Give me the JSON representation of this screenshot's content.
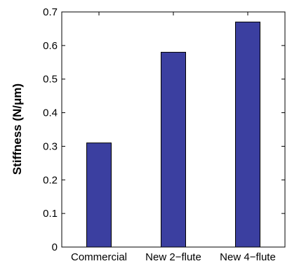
{
  "chart_data": {
    "type": "bar",
    "categories": [
      "Commercial",
      "New 2−flute",
      "New 4−flute"
    ],
    "values": [
      0.31,
      0.58,
      0.67
    ],
    "title": "",
    "xlabel": "",
    "ylabel": "Stiffness (N/μm)",
    "ylim": [
      0,
      0.7
    ],
    "yticks": [
      "0",
      "0.1",
      "0.2",
      "0.3",
      "0.4",
      "0.5",
      "0.6",
      "0.7"
    ],
    "grid": false,
    "legend": "none",
    "colors": {
      "bar": "#3b3fa0",
      "bar_edge": "#000000",
      "axis": "#000000"
    }
  }
}
